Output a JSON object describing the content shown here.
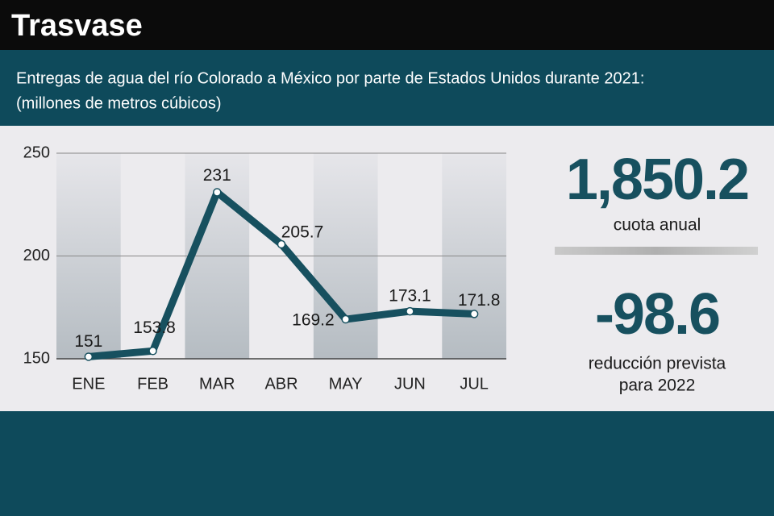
{
  "chart_data": {
    "type": "line",
    "title": "Trasvase",
    "subtitle": [
      "Entregas de agua del río Colorado a México por parte de Estados Unidos durante 2021:",
      "(millones de metros cúbicos)"
    ],
    "categories": [
      "ENE",
      "FEB",
      "MAR",
      "ABR",
      "MAY",
      "JUN",
      "JUL"
    ],
    "values": [
      151,
      153.8,
      231,
      205.7,
      169.2,
      173.1,
      171.8
    ],
    "color": "#17505f",
    "ylim": [
      150,
      250
    ],
    "yticks": [
      150,
      200,
      250
    ],
    "grid": true,
    "annotations": [
      {
        "value": "1,850.2",
        "label": [
          "cuota anual"
        ]
      },
      {
        "value": "-98.6",
        "label": [
          "reducción prevista",
          "para 2022"
        ]
      }
    ]
  }
}
